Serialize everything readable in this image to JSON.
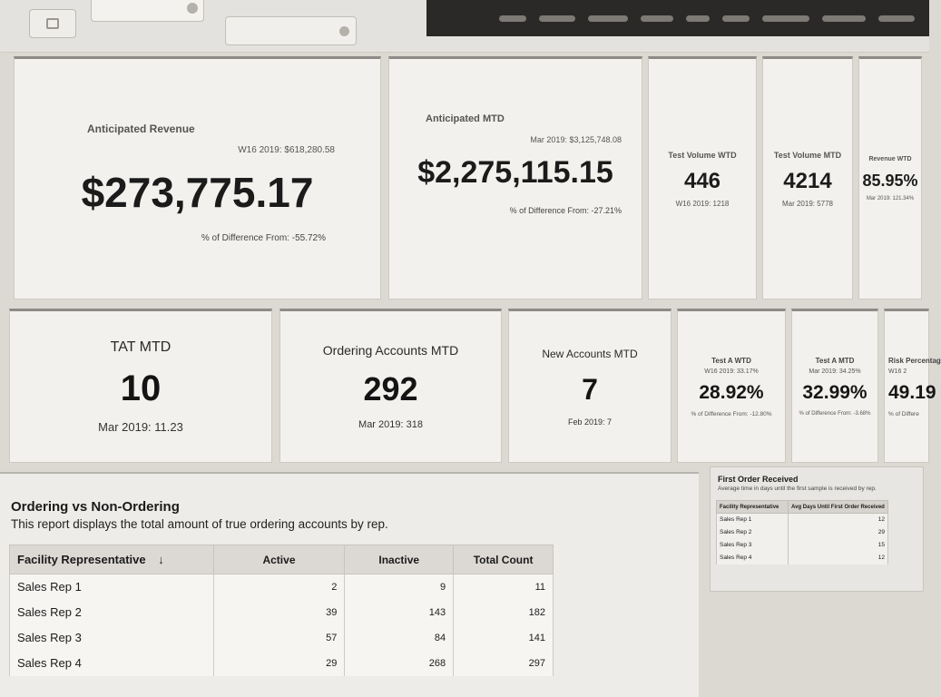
{
  "colors": {
    "page_bg": "#dcd9d3",
    "card_bg": "#f3f1ed",
    "nav_bg": "#2a2927",
    "text": "#1b1b1b"
  },
  "icons": {
    "sort": "↓",
    "filter": "filter-icon",
    "clear": "clear-icon",
    "dropdown": "dropdown-knob-icon"
  },
  "kpi_top": [
    {
      "title": "Anticipated Revenue",
      "sub": "W16 2019: $618,280.58",
      "value": "$273,775.17",
      "diff": "% of Difference From: -55.72%"
    },
    {
      "title": "Anticipated MTD",
      "sub": "Mar 2019: $3,125,748.08",
      "value": "$2,275,115.15",
      "diff": "% of Difference From: -27.21%"
    },
    {
      "title": "Test Volume WTD",
      "value": "446",
      "sub": "W16 2019: 1218"
    },
    {
      "title": "Test Volume MTD",
      "value": "4214",
      "sub": "Mar 2019: 5778"
    },
    {
      "title": "Revenue WTD",
      "value": "85.95%",
      "sub": "Mar 2019: 121.34%"
    }
  ],
  "kpi_mid": [
    {
      "title": "TAT MTD",
      "value": "10",
      "sub": "Mar 2019: 11.23"
    },
    {
      "title": "Ordering Accounts MTD",
      "value": "292",
      "sub": "Mar 2019: 318"
    },
    {
      "title": "New Accounts MTD",
      "value": "7",
      "sub": "Feb 2019: 7"
    },
    {
      "title": "Test A WTD",
      "sub": "W16 2019: 33.17%",
      "value": "28.92%",
      "diff": "% of Difference From: -12.80%"
    },
    {
      "title": "Test A MTD",
      "sub": "Mar 2019: 34.25%",
      "value": "32.99%",
      "diff": "% of Difference From: -3.68%"
    },
    {
      "title": "Risk Percentag",
      "sub": "W16 2",
      "value": "49.19",
      "diff": "% of Differe"
    }
  ],
  "ordering": {
    "title": "Ordering vs Non-Ordering",
    "description": "This report displays the total amount of true ordering accounts by rep.",
    "columns": [
      "Facility Representative",
      "Active",
      "Inactive",
      "Total Count"
    ],
    "rows": [
      [
        "Sales Rep 1",
        2,
        9,
        11
      ],
      [
        "Sales Rep 2",
        39,
        143,
        182
      ],
      [
        "Sales Rep 3",
        57,
        84,
        141
      ],
      [
        "Sales Rep 4",
        29,
        268,
        297
      ]
    ]
  },
  "first_order": {
    "title": "First Order Received",
    "description": "Average time in days until the first sample is received by rep.",
    "columns": [
      "Facility Representative",
      "Avg Days Until First Order Received"
    ],
    "rows": [
      [
        "Sales Rep 1",
        12
      ],
      [
        "Sales Rep 2",
        29
      ],
      [
        "Sales Rep 3",
        15
      ],
      [
        "Sales Rep 4",
        12
      ]
    ]
  }
}
